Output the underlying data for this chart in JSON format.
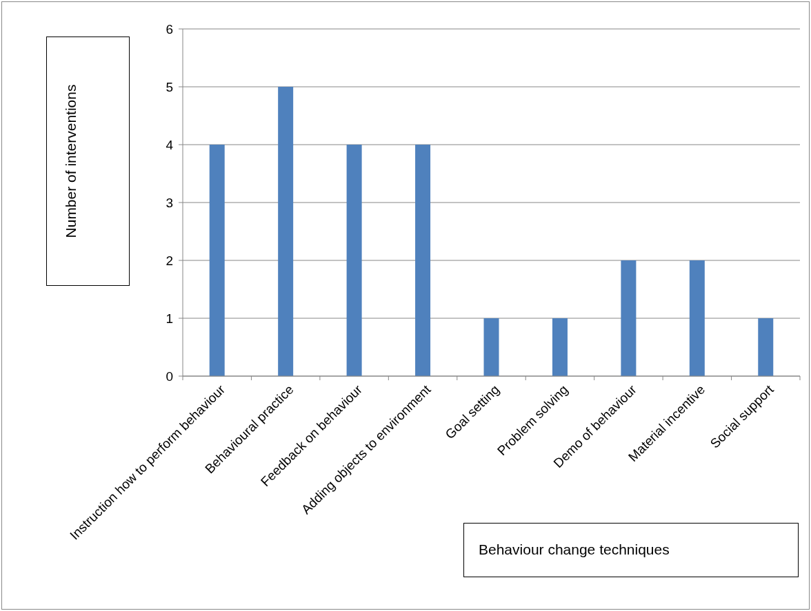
{
  "chart_data": {
    "type": "bar",
    "xlabel": "Behaviour change techniques",
    "ylabel": "Number of interventions",
    "categories": [
      "Instruction how to perform behaviour",
      "Behavioural practice",
      "Feedback on behaviour",
      "Adding objects to environment",
      "Goal setting",
      "Problem solving",
      "Demo of behaviour",
      "Material incentive",
      "Social support"
    ],
    "values": [
      4,
      5,
      4,
      4,
      1,
      1,
      2,
      2,
      1
    ],
    "color": "#4f81bd",
    "ylim": [
      0,
      6
    ],
    "yticks": [
      0,
      1,
      2,
      3,
      4,
      5,
      6
    ],
    "grid": "y"
  }
}
